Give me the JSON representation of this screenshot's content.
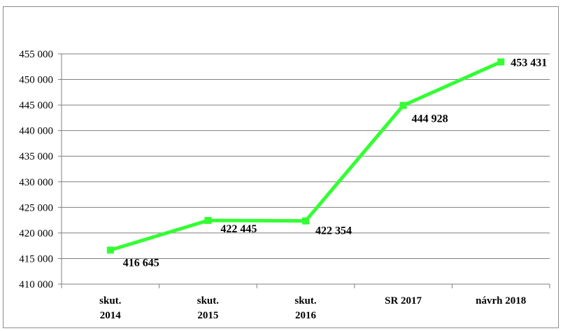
{
  "chart_data": {
    "type": "line",
    "title": "",
    "xlabel": "",
    "ylabel": "",
    "categories": [
      [
        "skut.",
        "2014"
      ],
      [
        "skut.",
        "2015"
      ],
      [
        "skut.",
        "2016"
      ],
      [
        "SR 2017"
      ],
      [
        "návrh 2018"
      ]
    ],
    "series": [
      {
        "values": [
          416645,
          422445,
          422354,
          444928,
          453431
        ],
        "color": "#33ff33"
      }
    ],
    "data_labels": [
      "416 645",
      "422 445",
      "422 354",
      "444 928",
      "453 431"
    ],
    "y_ticks": [
      "410 000",
      "415 000",
      "420 000",
      "425 000",
      "430 000",
      "435 000",
      "440 000",
      "445 000",
      "450 000",
      "455 000"
    ],
    "ylim": [
      410000,
      455000
    ],
    "y_step": 5000,
    "grid": true,
    "legend": "none",
    "colors": {
      "line": "#33ff33",
      "grid": "#7f7f7f",
      "axis": "#7f7f7f"
    }
  }
}
